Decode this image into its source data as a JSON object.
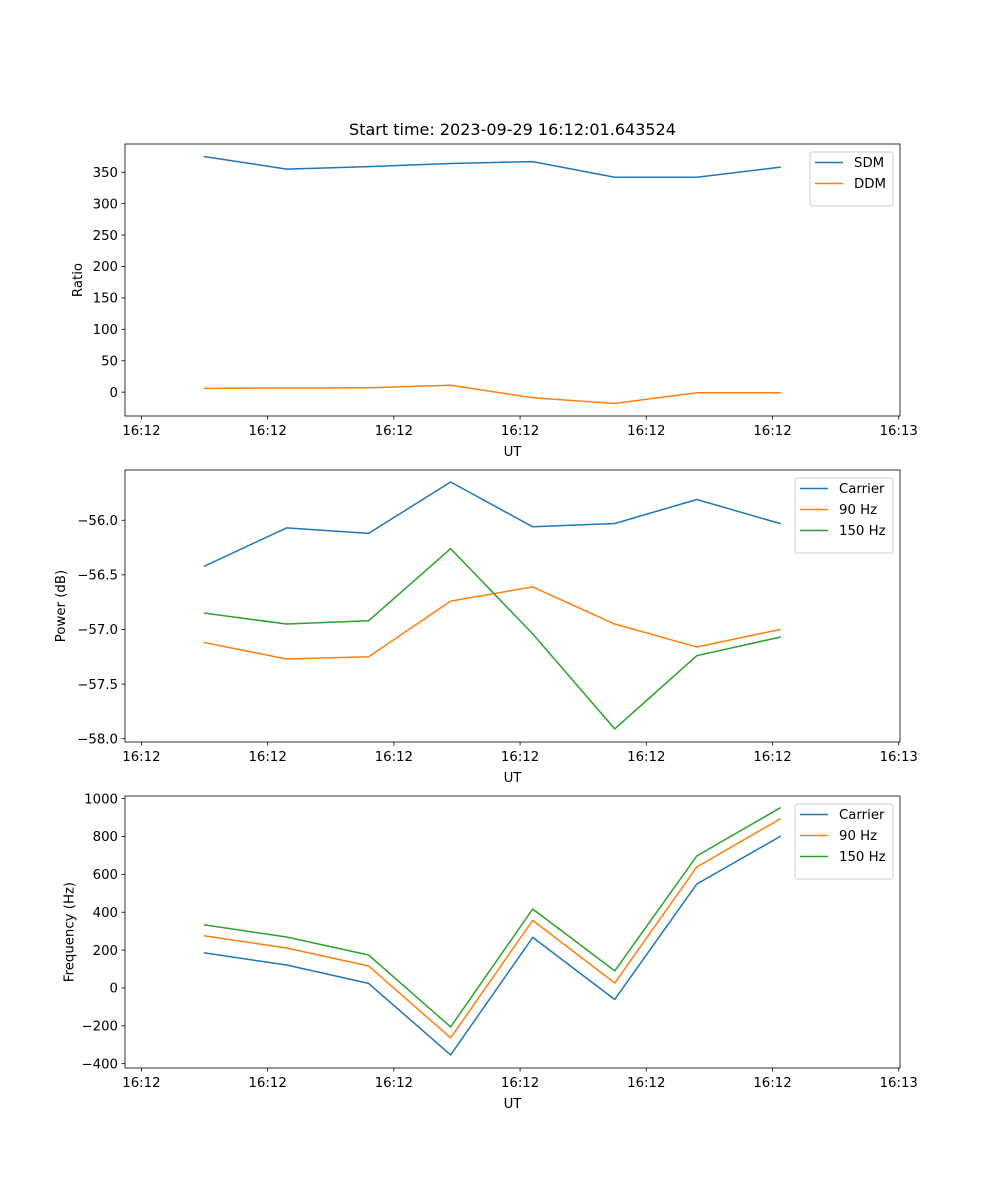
{
  "chart_data": [
    {
      "type": "line",
      "title": "Start time: 2023-09-29 16:12:01.643524",
      "xlabel": "UT",
      "ylabel": "Ratio",
      "x_units": "seconds after 16:12:00",
      "x": [
        5.0,
        11.5,
        18.0,
        24.5,
        31.0,
        37.5,
        44.0,
        50.6
      ],
      "xlim": [
        -1.3,
        60.1
      ],
      "xticks": [
        0,
        10,
        20,
        30,
        40,
        50,
        60
      ],
      "xtick_labels": [
        "16:12",
        "16:12",
        "16:12",
        "16:12",
        "16:12",
        "16:12",
        "16:13"
      ],
      "ylim": [
        -38,
        395
      ],
      "yticks": [
        0,
        50,
        100,
        150,
        200,
        250,
        300,
        350
      ],
      "ytick_labels": [
        "0",
        "50",
        "100",
        "150",
        "200",
        "250",
        "300",
        "350"
      ],
      "grid": false,
      "legend": "top-right",
      "series": [
        {
          "name": "SDM",
          "color": "#1f77b4",
          "values": [
            375,
            355,
            359,
            364,
            367,
            342,
            342,
            358
          ]
        },
        {
          "name": "DDM",
          "color": "#ff7f0e",
          "values": [
            6,
            6.5,
            7,
            11,
            -9,
            -18,
            -1,
            -1
          ]
        }
      ]
    },
    {
      "type": "line",
      "title": "",
      "xlabel": "UT",
      "ylabel": "Power (dB)",
      "x_units": "seconds after 16:12:00",
      "x": [
        5.0,
        11.5,
        18.0,
        24.5,
        31.0,
        37.5,
        44.0,
        50.6
      ],
      "xlim": [
        -1.3,
        60.1
      ],
      "xticks": [
        0,
        10,
        20,
        30,
        40,
        50,
        60
      ],
      "xtick_labels": [
        "16:12",
        "16:12",
        "16:12",
        "16:12",
        "16:12",
        "16:12",
        "16:13"
      ],
      "ylim": [
        -58.03,
        -55.54
      ],
      "yticks": [
        -58.0,
        -57.5,
        -57.0,
        -56.5,
        -56.0
      ],
      "ytick_labels": [
        "−58.0",
        "−57.5",
        "−57.0",
        "−56.5",
        "−56.0"
      ],
      "grid": false,
      "legend": "top-right",
      "series": [
        {
          "name": "Carrier",
          "color": "#1f77b4",
          "values": [
            -56.42,
            -56.07,
            -56.12,
            -55.65,
            -56.06,
            -56.03,
            -55.81,
            -56.03
          ]
        },
        {
          "name": "90 Hz",
          "color": "#ff7f0e",
          "values": [
            -57.12,
            -57.27,
            -57.25,
            -56.74,
            -56.61,
            -56.95,
            -57.16,
            -57.0
          ]
        },
        {
          "name": "150 Hz",
          "color": "#2ca02c",
          "values": [
            -56.85,
            -56.95,
            -56.92,
            -56.26,
            -57.04,
            -57.91,
            -57.24,
            -57.07
          ]
        }
      ]
    },
    {
      "type": "line",
      "title": "",
      "xlabel": "UT",
      "ylabel": "Frequency (Hz)",
      "x_units": "seconds after 16:12:00",
      "x": [
        5.0,
        11.5,
        18.0,
        24.5,
        31.0,
        37.5,
        44.0,
        50.6
      ],
      "xlim": [
        -1.3,
        60.1
      ],
      "xticks": [
        0,
        10,
        20,
        30,
        40,
        50,
        60
      ],
      "xtick_labels": [
        "16:12",
        "16:12",
        "16:12",
        "16:12",
        "16:12",
        "16:12",
        "16:13"
      ],
      "ylim": [
        -423,
        1014
      ],
      "yticks": [
        -400,
        -200,
        0,
        200,
        400,
        600,
        800,
        1000
      ],
      "ytick_labels": [
        "−400",
        "−200",
        "0",
        "200",
        "400",
        "600",
        "800",
        "1000"
      ],
      "grid": false,
      "legend": "top-right",
      "series": [
        {
          "name": "Carrier",
          "color": "#1f77b4",
          "values": [
            185,
            121,
            24,
            -354,
            267,
            -61,
            549,
            800
          ]
        },
        {
          "name": "90 Hz",
          "color": "#ff7f0e",
          "values": [
            275,
            211,
            116,
            -264,
            357,
            26,
            639,
            893
          ]
        },
        {
          "name": "150 Hz",
          "color": "#2ca02c",
          "values": [
            333,
            269,
            174,
            -206,
            417,
            90,
            697,
            951
          ]
        }
      ]
    }
  ]
}
